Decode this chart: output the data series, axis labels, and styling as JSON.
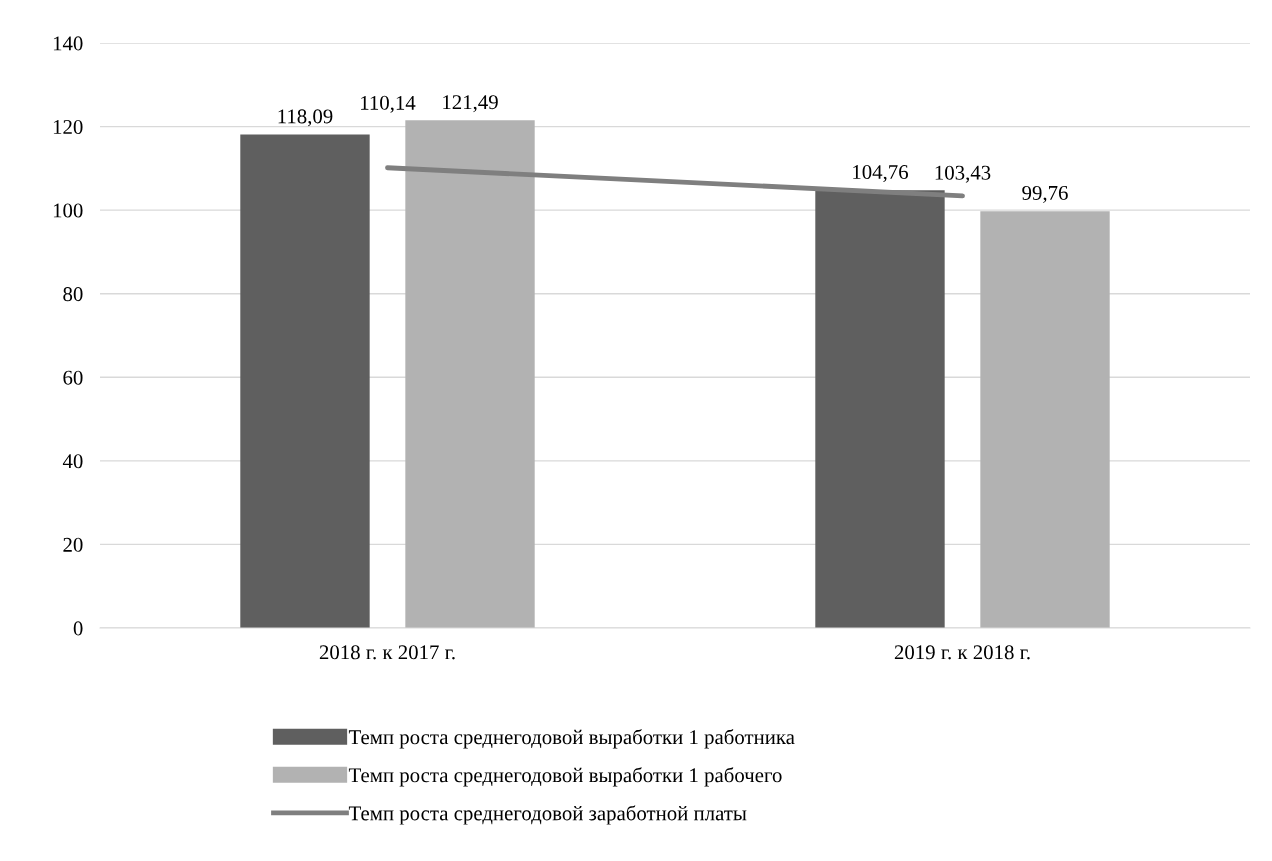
{
  "chart_data": {
    "type": "bar",
    "categories": [
      "2018 г. к 2017 г.",
      "2019 г. к 2018 г."
    ],
    "series": [
      {
        "name": "Темп роста среднегодовой выработки 1 работника",
        "color": "#5f5f5f",
        "values": [
          118.09,
          104.76
        ],
        "value_labels": [
          "118,09",
          "104,76"
        ]
      },
      {
        "name": "Темп роста среднегодовой выработки 1 рабочего",
        "color": "#b2b2b2",
        "values": [
          121.49,
          99.76
        ],
        "value_labels": [
          "121,49",
          "99,76"
        ]
      },
      {
        "name": "Темп роста среднегодовой заработной платы",
        "type": "line",
        "color": "#7f7f7f",
        "values": [
          110.14,
          103.43
        ],
        "value_labels": [
          "110,14",
          "103,43"
        ]
      }
    ],
    "ylim": [
      0,
      140
    ],
    "yticks": [
      0,
      20,
      40,
      60,
      80,
      100,
      120,
      140
    ],
    "grid": "y",
    "legend": "bottom"
  }
}
